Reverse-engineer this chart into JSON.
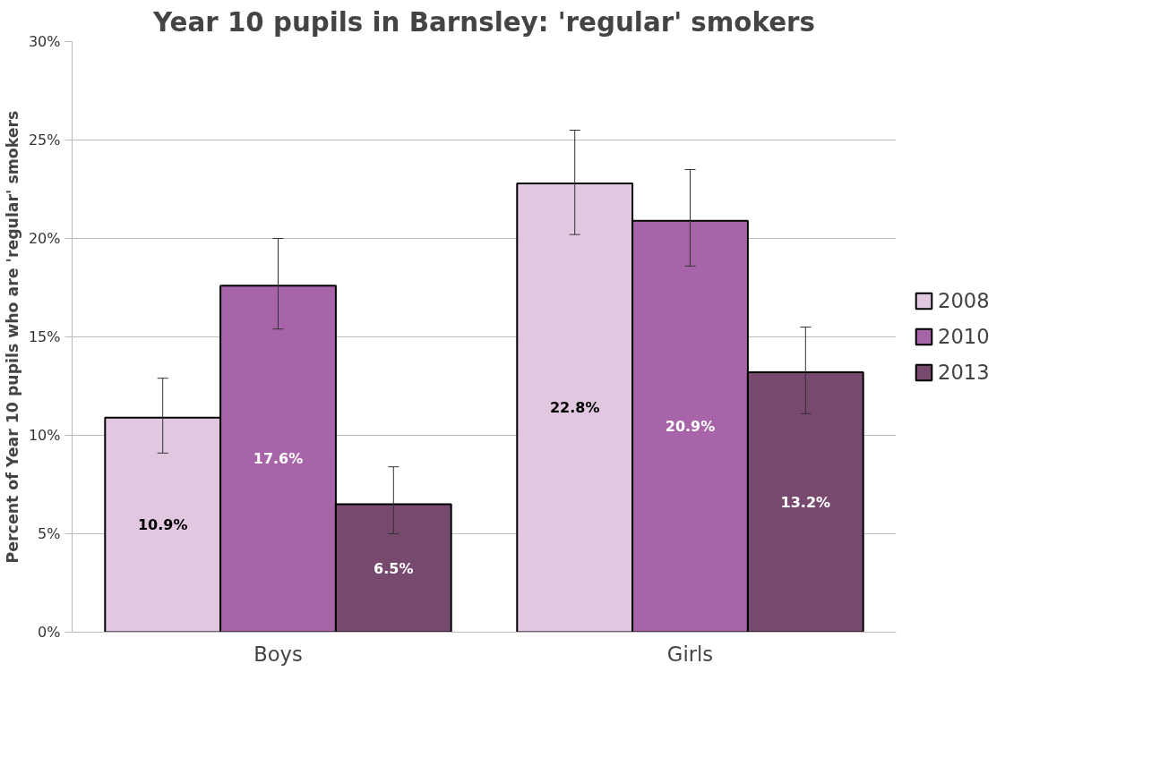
{
  "chart_data": {
    "type": "bar",
    "title": "Year 10 pupils in Barnsley: 'regular' smokers",
    "ylabel": "Percent of Year 10 pupils who are 'regular' smokers",
    "categories": [
      "Boys",
      "Girls"
    ],
    "series": [
      {
        "name": "2008",
        "color": "#e1c8e0",
        "values": [
          10.9,
          22.8
        ],
        "errors": [
          [
            9.1,
            12.9
          ],
          [
            20.2,
            25.5
          ]
        ],
        "value_labels": [
          "10.9%",
          "22.8%"
        ]
      },
      {
        "name": "2010",
        "color": "#a864a8",
        "values": [
          17.6,
          20.9
        ],
        "errors": [
          [
            15.4,
            20.0
          ],
          [
            18.6,
            23.5
          ]
        ],
        "value_labels": [
          "17.6%",
          "20.9%"
        ]
      },
      {
        "name": "2013",
        "color": "#78496e",
        "values": [
          6.5,
          13.2
        ],
        "errors": [
          [
            5.0,
            8.4
          ],
          [
            11.1,
            15.5
          ]
        ],
        "value_labels": [
          "6.5%",
          "13.2%"
        ]
      }
    ],
    "ylim": [
      0,
      30
    ],
    "yticks": [
      {
        "value": 0,
        "label": "0%"
      },
      {
        "value": 5,
        "label": "5%"
      },
      {
        "value": 10,
        "label": "10%"
      },
      {
        "value": 15,
        "label": "15%"
      },
      {
        "value": 20,
        "label": "20%"
      },
      {
        "value": 25,
        "label": "25%"
      },
      {
        "value": 30,
        "label": "30%"
      }
    ],
    "grid": "y",
    "legend": "right"
  }
}
